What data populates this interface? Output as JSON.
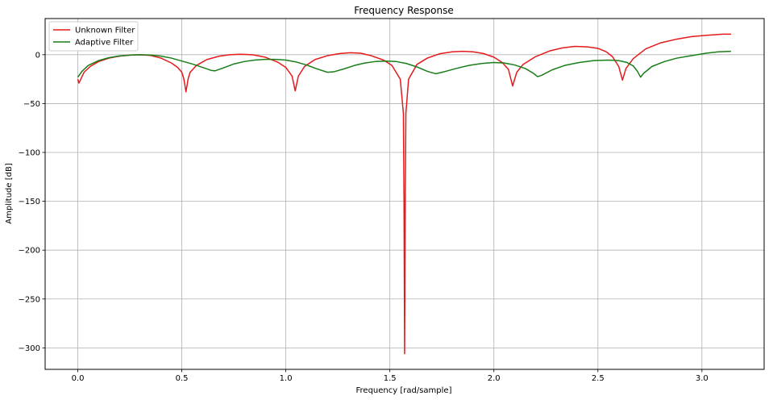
{
  "chart_data": {
    "type": "line",
    "title": "Frequency Response",
    "xlabel": "Frequency [rad/sample]",
    "ylabel": "Amplitude [dB]",
    "xlim": [
      -0.157,
      3.299
    ],
    "ylim": [
      -322,
      37
    ],
    "grid": true,
    "legend_position": "top-left",
    "xticks": [
      0.0,
      0.5,
      1.0,
      1.5,
      2.0,
      2.5,
      3.0
    ],
    "xtick_labels": [
      "0.0",
      "0.5",
      "1.0",
      "1.5",
      "2.0",
      "2.5",
      "3.0"
    ],
    "yticks": [
      0,
      -50,
      -100,
      -150,
      -200,
      -250,
      -300
    ],
    "ytick_labels": [
      "0",
      "−50",
      "−100",
      "−150",
      "−200",
      "−250",
      "−300"
    ],
    "series": [
      {
        "name": "Unknown Filter",
        "color": "#e41a1c",
        "points": [
          [
            0.0,
            -25
          ],
          [
            0.005,
            -29
          ],
          [
            0.01,
            -27
          ],
          [
            0.03,
            -18
          ],
          [
            0.06,
            -12
          ],
          [
            0.1,
            -7
          ],
          [
            0.15,
            -3.5
          ],
          [
            0.2,
            -1.5
          ],
          [
            0.26,
            -0.2
          ],
          [
            0.3,
            0
          ],
          [
            0.35,
            -0.8
          ],
          [
            0.4,
            -3.5
          ],
          [
            0.45,
            -8.5
          ],
          [
            0.48,
            -13
          ],
          [
            0.5,
            -18
          ],
          [
            0.51,
            -25
          ],
          [
            0.52,
            -38
          ],
          [
            0.53,
            -25
          ],
          [
            0.54,
            -18
          ],
          [
            0.57,
            -11
          ],
          [
            0.62,
            -5
          ],
          [
            0.68,
            -1.5
          ],
          [
            0.73,
            0
          ],
          [
            0.78,
            0.5
          ],
          [
            0.84,
            0
          ],
          [
            0.9,
            -2.5
          ],
          [
            0.96,
            -7.5
          ],
          [
            1.0,
            -13
          ],
          [
            1.03,
            -22
          ],
          [
            1.045,
            -37
          ],
          [
            1.06,
            -22
          ],
          [
            1.09,
            -12
          ],
          [
            1.14,
            -5
          ],
          [
            1.2,
            -1
          ],
          [
            1.26,
            1.2
          ],
          [
            1.31,
            2
          ],
          [
            1.36,
            1.5
          ],
          [
            1.41,
            -1
          ],
          [
            1.47,
            -5.5
          ],
          [
            1.51,
            -11
          ],
          [
            1.55,
            -25
          ],
          [
            1.565,
            -60
          ],
          [
            1.568,
            -150
          ],
          [
            1.5708,
            -306
          ],
          [
            1.574,
            -150
          ],
          [
            1.577,
            -60
          ],
          [
            1.59,
            -25
          ],
          [
            1.63,
            -10
          ],
          [
            1.68,
            -3.5
          ],
          [
            1.74,
            1
          ],
          [
            1.8,
            3
          ],
          [
            1.85,
            3.5
          ],
          [
            1.9,
            3
          ],
          [
            1.95,
            1.2
          ],
          [
            2.0,
            -2.5
          ],
          [
            2.04,
            -8
          ],
          [
            2.07,
            -15
          ],
          [
            2.09,
            -32
          ],
          [
            2.11,
            -18
          ],
          [
            2.14,
            -10
          ],
          [
            2.2,
            -2
          ],
          [
            2.27,
            4
          ],
          [
            2.33,
            7
          ],
          [
            2.39,
            8.5
          ],
          [
            2.45,
            8
          ],
          [
            2.5,
            6.5
          ],
          [
            2.54,
            3
          ],
          [
            2.57,
            -2
          ],
          [
            2.6,
            -12
          ],
          [
            2.618,
            -26
          ],
          [
            2.635,
            -14
          ],
          [
            2.67,
            -4
          ],
          [
            2.73,
            6
          ],
          [
            2.8,
            12
          ],
          [
            2.88,
            16
          ],
          [
            2.95,
            18.5
          ],
          [
            3.03,
            20
          ],
          [
            3.1,
            21
          ],
          [
            3.14,
            21
          ]
        ]
      },
      {
        "name": "Adaptive Filter",
        "color": "#1a7d1a",
        "points": [
          [
            0.0,
            -23
          ],
          [
            0.02,
            -17
          ],
          [
            0.05,
            -11
          ],
          [
            0.1,
            -6
          ],
          [
            0.15,
            -3
          ],
          [
            0.2,
            -1.3
          ],
          [
            0.25,
            -0.4
          ],
          [
            0.3,
            0
          ],
          [
            0.35,
            -0.3
          ],
          [
            0.4,
            -1.5
          ],
          [
            0.45,
            -3.5
          ],
          [
            0.5,
            -6.5
          ],
          [
            0.55,
            -9.5
          ],
          [
            0.6,
            -13
          ],
          [
            0.64,
            -16
          ],
          [
            0.66,
            -16.5
          ],
          [
            0.7,
            -13.5
          ],
          [
            0.75,
            -9.5
          ],
          [
            0.8,
            -7
          ],
          [
            0.85,
            -5.5
          ],
          [
            0.9,
            -4.8
          ],
          [
            0.95,
            -4.8
          ],
          [
            1.0,
            -5.5
          ],
          [
            1.05,
            -7.5
          ],
          [
            1.1,
            -10.5
          ],
          [
            1.15,
            -14.5
          ],
          [
            1.2,
            -18
          ],
          [
            1.23,
            -17.5
          ],
          [
            1.28,
            -14.5
          ],
          [
            1.33,
            -11
          ],
          [
            1.38,
            -8.5
          ],
          [
            1.43,
            -7
          ],
          [
            1.48,
            -6.5
          ],
          [
            1.53,
            -7
          ],
          [
            1.58,
            -9
          ],
          [
            1.63,
            -12.5
          ],
          [
            1.68,
            -17
          ],
          [
            1.72,
            -19.5
          ],
          [
            1.76,
            -17.5
          ],
          [
            1.82,
            -14
          ],
          [
            1.88,
            -11
          ],
          [
            1.94,
            -9
          ],
          [
            2.0,
            -8
          ],
          [
            2.05,
            -8.5
          ],
          [
            2.1,
            -10.5
          ],
          [
            2.15,
            -14
          ],
          [
            2.19,
            -19
          ],
          [
            2.21,
            -22.5
          ],
          [
            2.23,
            -21
          ],
          [
            2.28,
            -15.5
          ],
          [
            2.34,
            -11
          ],
          [
            2.41,
            -8
          ],
          [
            2.48,
            -6
          ],
          [
            2.55,
            -5.5
          ],
          [
            2.6,
            -6
          ],
          [
            2.64,
            -8
          ],
          [
            2.67,
            -11.5
          ],
          [
            2.69,
            -17
          ],
          [
            2.705,
            -23
          ],
          [
            2.72,
            -19
          ],
          [
            2.76,
            -12
          ],
          [
            2.82,
            -7
          ],
          [
            2.88,
            -3.5
          ],
          [
            2.95,
            -1
          ],
          [
            3.02,
            1.5
          ],
          [
            3.08,
            3
          ],
          [
            3.14,
            3.5
          ]
        ]
      }
    ]
  }
}
